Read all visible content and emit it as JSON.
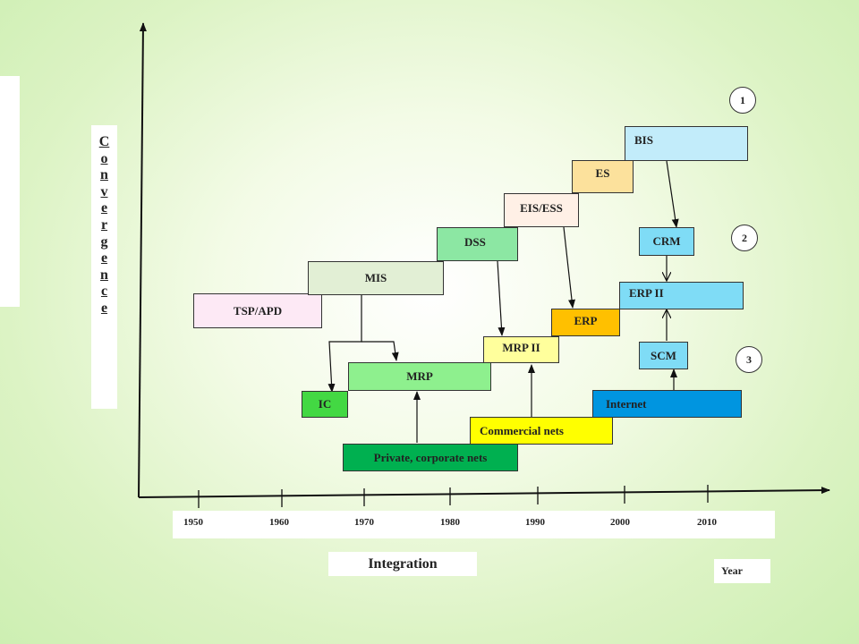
{
  "y_axis_label": "Convergence",
  "x_axis_label": "Integration",
  "year_label": "Year",
  "years": [
    "1950",
    "1960",
    "1970",
    "1980",
    "1990",
    "2000",
    "2010"
  ],
  "circles": [
    "1",
    "2",
    "3"
  ],
  "boxes": {
    "tsp_apd": "TSP/APD",
    "mis": "MIS",
    "dss": "DSS",
    "eis_ess": "EIS/ESS",
    "es": "ES",
    "bis": "BIS",
    "crm": "CRM",
    "erp_ii": "ERP II",
    "erp": "ERP",
    "mrp_ii": "MRP II",
    "scm": "SCM",
    "mrp": "MRP",
    "ic": "IC",
    "internet": "Internet",
    "commercial_nets": "Commercial nets",
    "private_nets": "Private, corporate nets"
  },
  "colors": {
    "tsp_apd": "#fde9f5",
    "mis": "#e2efd5",
    "dss": "#8ce7a3",
    "eis_ess": "#fff0e6",
    "es": "#fce19c",
    "bis": "#c2ecfa",
    "crm": "#7fdcf6",
    "erp_ii": "#7fdcf6",
    "erp": "#ffc000",
    "mrp_ii": "#ffff9c",
    "scm": "#7fdcf6",
    "mrp": "#8ef08e",
    "ic": "#43d843",
    "internet": "#0095e0",
    "commercial_nets": "#ffff00",
    "private_nets": "#00b050"
  }
}
